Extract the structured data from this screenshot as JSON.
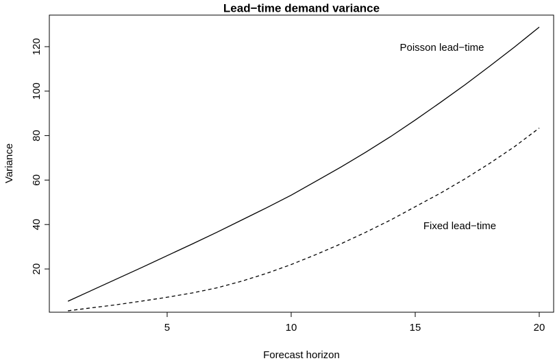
{
  "chart_data": {
    "type": "line",
    "title": "Lead−time demand variance",
    "x_label": "Forecast horizon",
    "y_label": "Variance",
    "x": [
      1,
      2,
      3,
      4,
      5,
      6,
      7,
      8,
      9,
      10,
      11,
      12,
      13,
      14,
      15,
      16,
      17,
      18,
      19,
      20
    ],
    "series": [
      {
        "name": "Poisson lead−time",
        "color": "#000000",
        "style": "solid",
        "values": [
          5.5,
          10.6,
          15.7,
          20.8,
          26,
          31.2,
          36.5,
          42,
          47.5,
          53.2,
          59.5,
          65.8,
          72.5,
          79.5,
          87,
          94.8,
          102.8,
          111.2,
          119.8,
          128.8
        ]
      },
      {
        "name": "Fixed lead−time",
        "color": "#000000",
        "style": "dashed",
        "values": [
          1.2,
          2.6,
          4.0,
          5.6,
          7.3,
          9.2,
          11.5,
          14.5,
          18,
          22,
          26.5,
          31.3,
          36.5,
          42,
          48,
          54,
          60.5,
          67.5,
          75,
          83.4
        ]
      }
    ],
    "xlim": [
      0.25,
      20.58
    ],
    "ylim": [
      0.56,
      134.2
    ],
    "xticks": [
      5,
      10,
      15,
      20
    ],
    "yticks": [
      20,
      40,
      60,
      80,
      100,
      120
    ]
  }
}
